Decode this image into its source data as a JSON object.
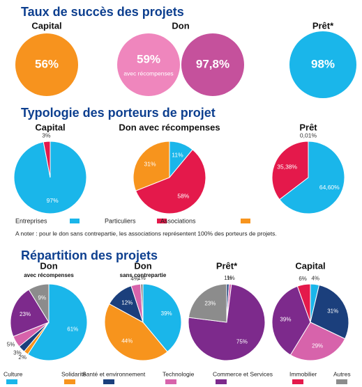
{
  "chart_data": [
    {
      "type": "rate",
      "title": "Taux de succès des projets",
      "charts": [
        {
          "title": "Capital",
          "values": [
            56
          ],
          "value_labels": [
            "56%"
          ],
          "colors": [
            "#f7931e"
          ]
        },
        {
          "title": "Don",
          "values": [
            59,
            97.8
          ],
          "value_labels": [
            "59%",
            "97,8%"
          ],
          "colors": [
            "#ef86bd",
            "#c5519c"
          ],
          "annotation": "avec récompenses"
        },
        {
          "title": "Prêt*",
          "values": [
            98
          ],
          "value_labels": [
            "98%"
          ],
          "colors": [
            "#1ab6ea"
          ]
        }
      ]
    },
    {
      "type": "pie",
      "title": "Typologie des porteurs de projet",
      "categories": [
        "Entreprises",
        "Particuliers",
        "Associations"
      ],
      "colors": [
        "#1ab6ea",
        "#e4194b",
        "#f7941d"
      ],
      "charts": [
        {
          "title": "Capital",
          "values": [
            97,
            3,
            null
          ],
          "value_labels": [
            "97%",
            "3%",
            null
          ]
        },
        {
          "title": "Don avec récompenses",
          "values": [
            11,
            58,
            31
          ],
          "value_labels": [
            "11%",
            "58%",
            "31%"
          ]
        },
        {
          "title": "Prêt",
          "values": [
            64.6,
            35.38,
            0.01
          ],
          "value_labels": [
            "64,60%",
            "35,38%",
            "0,01%"
          ]
        }
      ],
      "note": "A noter : pour le don sans contrepartie, les associations représentent 100% des porteurs de projets."
    },
    {
      "type": "pie",
      "title": "Répartition des projets",
      "categories": [
        "Culture",
        "Solidarité",
        "Santé et environnement",
        "Technologie",
        "Commerce et Services",
        "Immobilier",
        "Autres"
      ],
      "colors": [
        "#1ab6ea",
        "#f7941d",
        "#1b3f7c",
        "#d763ab",
        "#7d2a8c",
        "#e4194b",
        "#8c8c8c"
      ],
      "charts": [
        {
          "title": "Don",
          "subtitle": "avec récompenses",
          "values": [
            61,
            2,
            3,
            5,
            23,
            null,
            9
          ],
          "value_labels": [
            "61%",
            "2%",
            "3%",
            "5%",
            "23%",
            null,
            "9%"
          ]
        },
        {
          "title": "Don",
          "subtitle": "sans contrepartie",
          "values": [
            39,
            44,
            12,
            4,
            null,
            null,
            1
          ],
          "value_labels": [
            "39%",
            "44%",
            "12%",
            "4%",
            null,
            null,
            "1%"
          ]
        },
        {
          "title": "Prêt*",
          "values": [
            null,
            null,
            1,
            1,
            75,
            null,
            23
          ],
          "value_labels": [
            null,
            null,
            "1%",
            "1%",
            "75%",
            null,
            "23%"
          ]
        },
        {
          "title": "Capital",
          "values": [
            4,
            null,
            31,
            29,
            39,
            6,
            null
          ],
          "value_labels": [
            "4%",
            null,
            "31%",
            "29%",
            "39%",
            "6%",
            null
          ]
        }
      ]
    }
  ]
}
